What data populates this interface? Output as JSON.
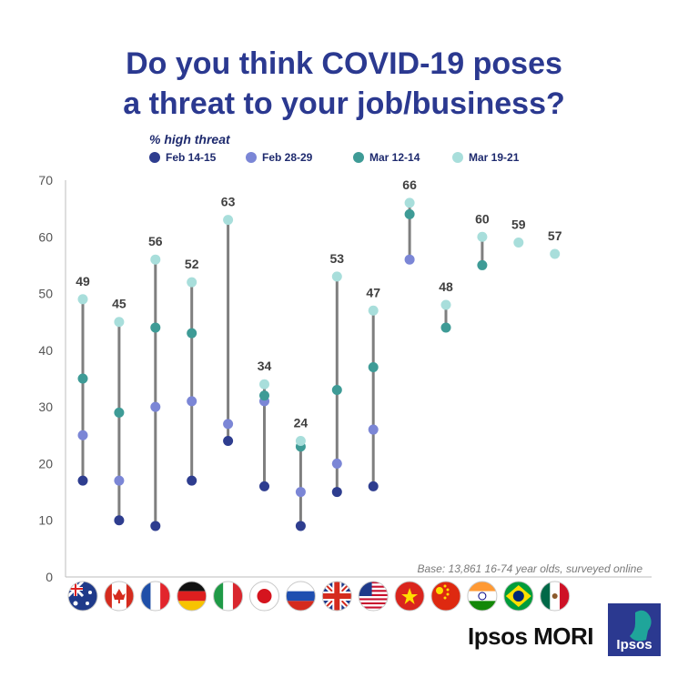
{
  "title": {
    "line1": "Do you think COVID-19 poses",
    "line2": "a threat to your job/business?"
  },
  "legend": {
    "title": "% high threat",
    "items": [
      {
        "label": "Feb 14-15",
        "color": "#2e3d8f"
      },
      {
        "label": "Feb 28-29",
        "color": "#7b86d6"
      },
      {
        "label": "Mar 12-14",
        "color": "#3e9b96"
      },
      {
        "label": "Mar 19-21",
        "color": "#a8dedb"
      }
    ]
  },
  "chart_data": {
    "type": "scatter",
    "title": "Do you think COVID-19 poses a threat to your job/business?",
    "subtitle": "% high threat",
    "ylim": [
      0,
      70
    ],
    "yticks": [
      0,
      10,
      20,
      30,
      40,
      50,
      60,
      70
    ],
    "grid": false,
    "legend_position": "top",
    "categories": [
      "Australia",
      "Canada",
      "France",
      "Germany",
      "Italy",
      "Japan",
      "Russia",
      "UK",
      "USA",
      "Vietnam",
      "China",
      "India",
      "Brazil",
      "Mexico"
    ],
    "series": [
      {
        "name": "Feb 14-15",
        "color": "#2e3d8f",
        "values": [
          17,
          10,
          9,
          17,
          24,
          16,
          9,
          15,
          16,
          null,
          null,
          null,
          null,
          null
        ]
      },
      {
        "name": "Feb 28-29",
        "color": "#7b86d6",
        "values": [
          25,
          17,
          30,
          31,
          27,
          31,
          15,
          20,
          26,
          56,
          null,
          null,
          null,
          null
        ]
      },
      {
        "name": "Mar 12-14",
        "color": "#3e9b96",
        "values": [
          35,
          29,
          44,
          43,
          null,
          32,
          23,
          33,
          37,
          64,
          44,
          55,
          null,
          null
        ]
      },
      {
        "name": "Mar 19-21",
        "color": "#a8dedb",
        "values": [
          49,
          45,
          56,
          52,
          63,
          34,
          24,
          53,
          47,
          66,
          48,
          60,
          59,
          57
        ]
      }
    ],
    "data_labels": [
      49,
      45,
      56,
      52,
      63,
      34,
      24,
      53,
      47,
      66,
      48,
      60,
      59,
      57
    ]
  },
  "flags": [
    {
      "name": "australia-flag"
    },
    {
      "name": "canada-flag"
    },
    {
      "name": "france-flag"
    },
    {
      "name": "germany-flag"
    },
    {
      "name": "italy-flag"
    },
    {
      "name": "japan-flag"
    },
    {
      "name": "russia-flag"
    },
    {
      "name": "uk-flag"
    },
    {
      "name": "usa-flag"
    },
    {
      "name": "vietnam-flag"
    },
    {
      "name": "china-flag"
    },
    {
      "name": "india-flag"
    },
    {
      "name": "brazil-flag"
    },
    {
      "name": "mexico-flag"
    }
  ],
  "base_note": "Base: 13,861 16-74 year olds, surveyed online",
  "brand": {
    "text": "Ipsos MORI",
    "logo_text": "Ipsos",
    "logo_color": "#2b3990",
    "logo_accent": "#1fa59a"
  }
}
